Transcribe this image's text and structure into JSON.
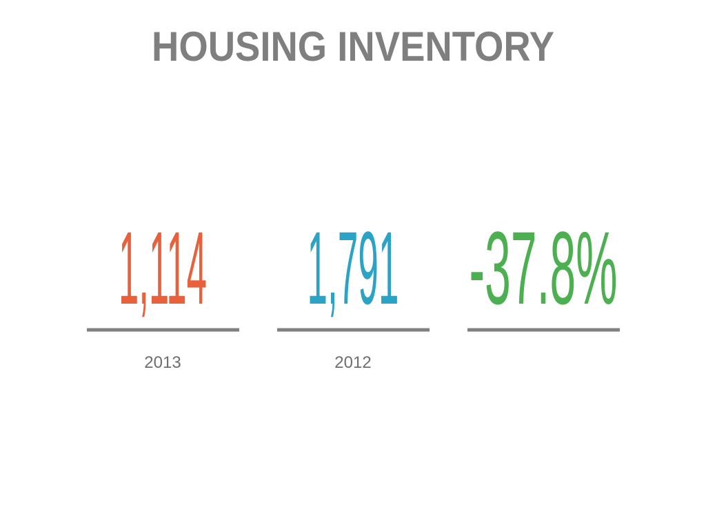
{
  "title": "HOUSING INVENTORY",
  "stats": [
    {
      "value": "1,114",
      "label": "2013",
      "color": "#e8603c"
    },
    {
      "value": "1,791",
      "label": "2012",
      "color": "#2ba3c4"
    },
    {
      "value": "-37.8%",
      "color": "#4caf50"
    }
  ]
}
